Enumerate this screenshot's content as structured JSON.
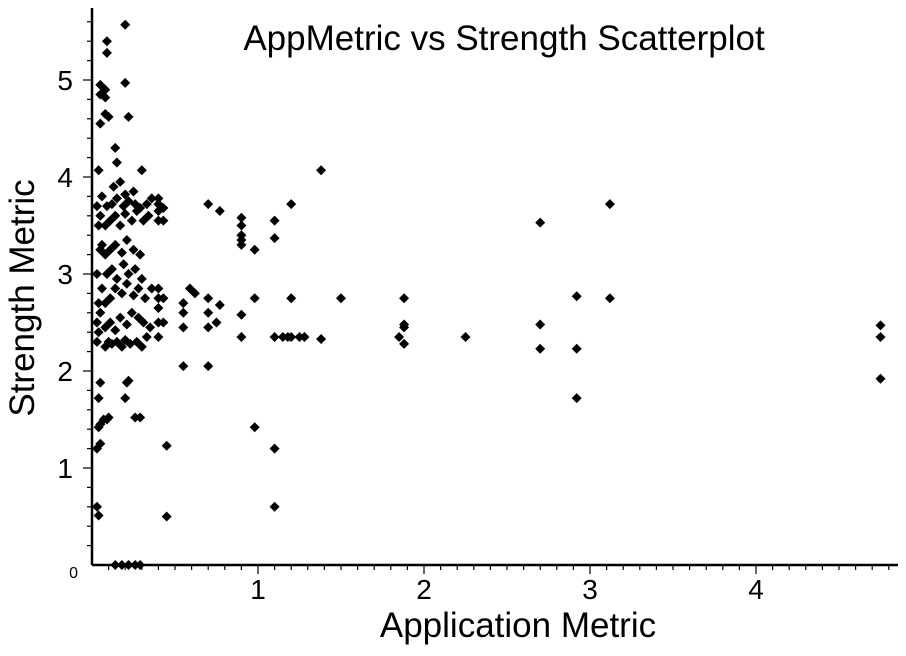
{
  "chart_data": {
    "type": "scatter",
    "title": "AppMetric vs Strength Scatterplot",
    "xlabel": "Application Metric",
    "ylabel": "Strength Metric",
    "xlim": [
      0,
      4.85
    ],
    "ylim": [
      0,
      5.6
    ],
    "x_ticks": [
      1,
      2,
      3,
      4
    ],
    "x_tick_labels": [
      "1",
      "2",
      "3",
      "4"
    ],
    "y_ticks": [
      0,
      1,
      2,
      3,
      4,
      5
    ],
    "y_tick_labels": [
      "0",
      "1",
      "2",
      "3",
      "4",
      "5"
    ],
    "grid": false,
    "marker": "diamond",
    "marker_color": "#000000",
    "points": [
      [
        0.03,
        0.6
      ],
      [
        0.04,
        0.51
      ],
      [
        0.03,
        1.2
      ],
      [
        0.05,
        1.25
      ],
      [
        0.04,
        1.42
      ],
      [
        0.05,
        1.45
      ],
      [
        0.07,
        1.5
      ],
      [
        0.09,
        1.5
      ],
      [
        0.1,
        1.52
      ],
      [
        0.04,
        1.72
      ],
      [
        0.05,
        1.88
      ],
      [
        0.03,
        2.3
      ],
      [
        0.04,
        2.4
      ],
      [
        0.03,
        2.5
      ],
      [
        0.05,
        2.6
      ],
      [
        0.04,
        2.7
      ],
      [
        0.06,
        2.85
      ],
      [
        0.03,
        3.0
      ],
      [
        0.05,
        3.25
      ],
      [
        0.06,
        3.3
      ],
      [
        0.04,
        3.5
      ],
      [
        0.05,
        3.6
      ],
      [
        0.03,
        3.7
      ],
      [
        0.06,
        3.8
      ],
      [
        0.04,
        4.07
      ],
      [
        0.05,
        4.55
      ],
      [
        0.05,
        4.85
      ],
      [
        0.05,
        4.95
      ],
      [
        0.08,
        4.9
      ],
      [
        0.08,
        4.82
      ],
      [
        0.08,
        4.65
      ],
      [
        0.1,
        4.62
      ],
      [
        0.09,
        5.28
      ],
      [
        0.09,
        5.4
      ],
      [
        0.2,
        5.57
      ],
      [
        0.2,
        4.97
      ],
      [
        0.22,
        4.62
      ],
      [
        0.14,
        4.3
      ],
      [
        0.15,
        4.15
      ],
      [
        0.13,
        3.9
      ],
      [
        0.17,
        3.95
      ],
      [
        0.2,
        3.82
      ],
      [
        0.25,
        3.85
      ],
      [
        0.3,
        4.07
      ],
      [
        0.08,
        2.25
      ],
      [
        0.1,
        2.3
      ],
      [
        0.12,
        2.28
      ],
      [
        0.15,
        2.3
      ],
      [
        0.18,
        2.25
      ],
      [
        0.2,
        2.32
      ],
      [
        0.23,
        2.28
      ],
      [
        0.27,
        2.3
      ],
      [
        0.3,
        2.25
      ],
      [
        0.33,
        2.35
      ],
      [
        0.08,
        2.45
      ],
      [
        0.11,
        2.5
      ],
      [
        0.14,
        2.42
      ],
      [
        0.17,
        2.55
      ],
      [
        0.21,
        2.48
      ],
      [
        0.24,
        2.6
      ],
      [
        0.28,
        2.55
      ],
      [
        0.31,
        2.5
      ],
      [
        0.35,
        2.45
      ],
      [
        0.08,
        2.7
      ],
      [
        0.11,
        2.75
      ],
      [
        0.14,
        2.85
      ],
      [
        0.18,
        2.8
      ],
      [
        0.21,
        2.9
      ],
      [
        0.25,
        2.78
      ],
      [
        0.28,
        2.85
      ],
      [
        0.32,
        2.75
      ],
      [
        0.36,
        2.85
      ],
      [
        0.09,
        3.0
      ],
      [
        0.12,
        3.05
      ],
      [
        0.15,
        2.95
      ],
      [
        0.19,
        3.1
      ],
      [
        0.22,
        3.0
      ],
      [
        0.26,
        3.05
      ],
      [
        0.3,
        2.95
      ],
      [
        0.08,
        3.2
      ],
      [
        0.11,
        3.25
      ],
      [
        0.14,
        3.3
      ],
      [
        0.18,
        3.22
      ],
      [
        0.21,
        3.35
      ],
      [
        0.25,
        3.25
      ],
      [
        0.29,
        3.2
      ],
      [
        0.08,
        3.5
      ],
      [
        0.11,
        3.55
      ],
      [
        0.14,
        3.6
      ],
      [
        0.17,
        3.5
      ],
      [
        0.2,
        3.62
      ],
      [
        0.24,
        3.55
      ],
      [
        0.27,
        3.65
      ],
      [
        0.31,
        3.55
      ],
      [
        0.34,
        3.6
      ],
      [
        0.09,
        3.7
      ],
      [
        0.12,
        3.72
      ],
      [
        0.15,
        3.78
      ],
      [
        0.19,
        3.7
      ],
      [
        0.22,
        3.75
      ],
      [
        0.26,
        3.72
      ],
      [
        0.29,
        3.68
      ],
      [
        0.33,
        3.72
      ],
      [
        0.36,
        3.78
      ],
      [
        0.4,
        2.35
      ],
      [
        0.4,
        2.5
      ],
      [
        0.4,
        2.65
      ],
      [
        0.4,
        2.75
      ],
      [
        0.4,
        2.85
      ],
      [
        0.4,
        3.55
      ],
      [
        0.4,
        3.65
      ],
      [
        0.4,
        3.72
      ],
      [
        0.4,
        3.78
      ],
      [
        0.43,
        2.5
      ],
      [
        0.43,
        2.75
      ],
      [
        0.43,
        3.55
      ],
      [
        0.43,
        3.68
      ],
      [
        0.22,
        1.9
      ],
      [
        0.21,
        1.88
      ],
      [
        0.2,
        1.72
      ],
      [
        0.26,
        1.52
      ],
      [
        0.29,
        1.52
      ],
      [
        0.45,
        1.23
      ],
      [
        0.45,
        0.5
      ],
      [
        0.14,
        0.0
      ],
      [
        0.18,
        0.0
      ],
      [
        0.22,
        0.0
      ],
      [
        0.26,
        0.0
      ],
      [
        0.29,
        0.0
      ],
      [
        0.55,
        2.05
      ],
      [
        0.55,
        2.45
      ],
      [
        0.55,
        2.6
      ],
      [
        0.55,
        2.7
      ],
      [
        0.59,
        2.85
      ],
      [
        0.62,
        2.8
      ],
      [
        0.7,
        2.05
      ],
      [
        0.7,
        2.45
      ],
      [
        0.7,
        2.6
      ],
      [
        0.7,
        2.75
      ],
      [
        0.7,
        3.72
      ],
      [
        0.75,
        2.5
      ],
      [
        0.77,
        2.68
      ],
      [
        0.77,
        3.65
      ],
      [
        0.9,
        2.35
      ],
      [
        0.9,
        2.58
      ],
      [
        0.9,
        3.3
      ],
      [
        0.9,
        3.35
      ],
      [
        0.9,
        3.4
      ],
      [
        0.9,
        3.5
      ],
      [
        0.9,
        3.58
      ],
      [
        0.98,
        3.25
      ],
      [
        0.98,
        2.75
      ],
      [
        0.98,
        1.42
      ],
      [
        1.1,
        3.37
      ],
      [
        1.1,
        3.55
      ],
      [
        1.1,
        2.35
      ],
      [
        1.1,
        1.2
      ],
      [
        1.1,
        0.6
      ],
      [
        1.15,
        2.35
      ],
      [
        1.18,
        2.35
      ],
      [
        1.2,
        2.35
      ],
      [
        1.2,
        2.75
      ],
      [
        1.2,
        3.72
      ],
      [
        1.25,
        2.35
      ],
      [
        1.28,
        2.35
      ],
      [
        1.38,
        4.07
      ],
      [
        1.38,
        2.33
      ],
      [
        1.5,
        2.75
      ],
      [
        1.85,
        2.35
      ],
      [
        1.88,
        2.45
      ],
      [
        1.88,
        2.48
      ],
      [
        1.88,
        2.28
      ],
      [
        1.88,
        2.75
      ],
      [
        2.25,
        2.35
      ],
      [
        2.7,
        2.48
      ],
      [
        2.7,
        2.23
      ],
      [
        2.7,
        3.53
      ],
      [
        2.92,
        2.77
      ],
      [
        2.92,
        2.23
      ],
      [
        2.92,
        1.72
      ],
      [
        3.12,
        3.72
      ],
      [
        3.12,
        2.75
      ],
      [
        4.75,
        2.47
      ],
      [
        4.75,
        2.35
      ],
      [
        4.75,
        1.92
      ]
    ]
  }
}
